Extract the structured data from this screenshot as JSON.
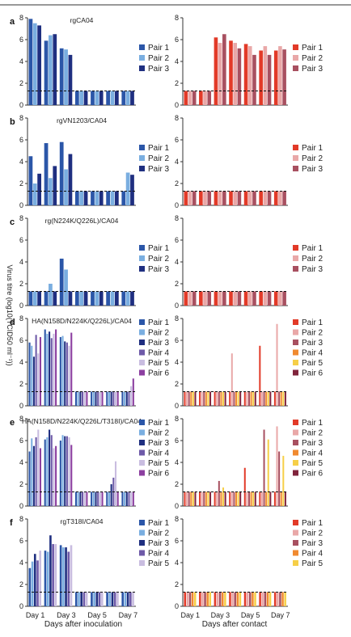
{
  "chart_data": {
    "type": "bar",
    "y_axis_label": "Virus titre (log10(TCID50 ml⁻¹))",
    "bottom_x_labels": {
      "left": "Days after inoculation",
      "right": "Days after contact"
    },
    "x_tick_labels": [
      "Day 1",
      "Day 3",
      "Day 5",
      "Day 7"
    ],
    "days": [
      1,
      2,
      3,
      4,
      5,
      6,
      7
    ],
    "detection_limit": 1.3,
    "ylim": [
      0,
      8
    ],
    "y_ticks": [
      0,
      2,
      4,
      6,
      8
    ],
    "palettes": {
      "inoculated": [
        "#2b56a8",
        "#7aaee0",
        "#1f2f80",
        "#6e5aa8",
        "#c9bde0",
        "#8c3fa0"
      ],
      "contact": [
        "#e23a28",
        "#e9a8a8",
        "#a85060",
        "#f08a30",
        "#f6cf48",
        "#80243c"
      ]
    },
    "panels": [
      {
        "letter": "a",
        "title": "rgCA04",
        "inoculated": [
          {
            "name": "Pair 1",
            "values": [
              7.9,
              5.9,
              5.2,
              1.3,
              1.3,
              1.3,
              1.3
            ]
          },
          {
            "name": "Pair 2",
            "values": [
              7.5,
              6.4,
              5.1,
              1.3,
              1.3,
              1.3,
              1.3
            ]
          },
          {
            "name": "Pair 3",
            "values": [
              7.3,
              6.5,
              4.6,
              1.3,
              1.3,
              1.3,
              1.3
            ]
          }
        ],
        "contact": [
          {
            "name": "Pair 1",
            "values": [
              1.3,
              1.3,
              6.2,
              5.9,
              5.6,
              5.0,
              5.0
            ]
          },
          {
            "name": "Pair 2",
            "values": [
              1.3,
              1.3,
              5.7,
              5.7,
              5.4,
              5.4,
              5.4
            ]
          },
          {
            "name": "Pair 3",
            "values": [
              1.3,
              1.3,
              6.5,
              5.2,
              4.6,
              4.6,
              5.1
            ]
          }
        ]
      },
      {
        "letter": "b",
        "title": "rgVN1203/CA04",
        "inoculated": [
          {
            "name": "Pair 1",
            "values": [
              4.5,
              5.7,
              5.8,
              1.3,
              1.3,
              1.3,
              1.3
            ]
          },
          {
            "name": "Pair 2",
            "values": [
              2.0,
              2.5,
              3.3,
              1.3,
              1.3,
              1.3,
              3.0
            ]
          },
          {
            "name": "Pair 3",
            "values": [
              2.9,
              3.6,
              4.7,
              1.3,
              1.3,
              1.3,
              2.8
            ]
          }
        ],
        "contact": [
          {
            "name": "Pair 1",
            "values": [
              1.3,
              1.3,
              1.3,
              1.3,
              1.3,
              1.3,
              1.3
            ]
          },
          {
            "name": "Pair 2",
            "values": [
              1.3,
              1.3,
              1.3,
              1.3,
              1.3,
              1.3,
              1.3
            ]
          },
          {
            "name": "Pair 3",
            "values": [
              1.3,
              1.3,
              1.3,
              1.3,
              1.3,
              1.3,
              1.3
            ]
          }
        ]
      },
      {
        "letter": "c",
        "title": "rg(N224K/Q226L)/CA04",
        "inoculated": [
          {
            "name": "Pair 1",
            "values": [
              1.3,
              1.3,
              4.3,
              1.3,
              1.3,
              1.3,
              1.3
            ]
          },
          {
            "name": "Pair 2",
            "values": [
              1.3,
              2.0,
              3.3,
              1.3,
              1.3,
              1.3,
              1.3
            ]
          },
          {
            "name": "Pair 3",
            "values": [
              1.3,
              1.3,
              1.3,
              1.3,
              1.3,
              1.3,
              1.3
            ]
          }
        ],
        "contact": [
          {
            "name": "Pair 1",
            "values": [
              1.3,
              1.3,
              1.3,
              1.3,
              1.3,
              1.3,
              1.3
            ]
          },
          {
            "name": "Pair 2",
            "values": [
              1.3,
              1.3,
              1.3,
              1.3,
              1.3,
              1.3,
              1.3
            ]
          },
          {
            "name": "Pair 3",
            "values": [
              1.3,
              1.3,
              1.3,
              1.3,
              1.3,
              1.3,
              1.3
            ]
          }
        ]
      },
      {
        "letter": "d",
        "title": "HA(N158D/N224K/Q226L)/CA04",
        "inoculated": [
          {
            "name": "Pair 1",
            "values": [
              5.8,
              7.0,
              6.3,
              1.3,
              1.3,
              1.3,
              1.3
            ]
          },
          {
            "name": "Pair 2",
            "values": [
              5.5,
              6.6,
              6.4,
              1.3,
              1.3,
              1.3,
              1.3
            ]
          },
          {
            "name": "Pair 3",
            "values": [
              4.5,
              6.8,
              5.9,
              1.3,
              1.3,
              1.3,
              1.3
            ]
          },
          {
            "name": "Pair 4",
            "values": [
              6.5,
              6.2,
              5.8,
              1.3,
              1.3,
              1.3,
              1.3
            ]
          },
          {
            "name": "Pair 5",
            "values": [
              4.8,
              6.6,
              5.5,
              1.3,
              1.3,
              1.3,
              1.8
            ]
          },
          {
            "name": "Pair 6",
            "values": [
              6.3,
              7.0,
              6.7,
              1.3,
              1.3,
              1.3,
              2.5
            ]
          }
        ],
        "contact": [
          {
            "name": "Pair 1",
            "values": [
              1.3,
              1.3,
              1.3,
              1.3,
              1.3,
              5.5,
              1.3
            ]
          },
          {
            "name": "Pair 2",
            "values": [
              1.3,
              1.3,
              1.3,
              4.8,
              1.3,
              1.3,
              7.5
            ]
          },
          {
            "name": "Pair 3",
            "values": [
              1.3,
              1.3,
              1.3,
              1.3,
              1.3,
              1.3,
              1.3
            ]
          },
          {
            "name": "Pair 4",
            "values": [
              1.3,
              1.3,
              1.3,
              1.3,
              1.3,
              1.3,
              1.3
            ]
          },
          {
            "name": "Pair 5",
            "values": [
              1.3,
              1.3,
              1.3,
              1.3,
              1.3,
              1.3,
              1.3
            ]
          },
          {
            "name": "Pair 6",
            "values": [
              1.3,
              1.3,
              1.3,
              1.3,
              1.3,
              1.3,
              1.3
            ]
          }
        ]
      },
      {
        "letter": "e",
        "title": "HA(N158D/N224K/Q226L/T318I)/CA04",
        "inoculated": [
          {
            "name": "Pair 1",
            "values": [
              5.0,
              6.1,
              6.0,
              1.3,
              1.3,
              1.3,
              1.3
            ]
          },
          {
            "name": "Pair 2",
            "values": [
              6.2,
              6.3,
              6.5,
              1.3,
              1.3,
              1.3,
              1.3
            ]
          },
          {
            "name": "Pair 3",
            "values": [
              5.5,
              7.0,
              6.4,
              1.3,
              1.3,
              2.0,
              1.3
            ]
          },
          {
            "name": "Pair 4",
            "values": [
              6.3,
              6.5,
              6.4,
              1.3,
              1.3,
              2.6,
              1.3
            ]
          },
          {
            "name": "Pair 5",
            "values": [
              7.0,
              5.3,
              6.3,
              1.3,
              1.3,
              4.1,
              1.3
            ]
          },
          {
            "name": "Pair 6",
            "values": [
              5.3,
              5.5,
              5.6,
              1.3,
              1.3,
              1.3,
              1.3
            ]
          }
        ],
        "contact": [
          {
            "name": "Pair 1",
            "values": [
              1.3,
              1.3,
              1.3,
              1.3,
              3.5,
              1.3,
              1.3
            ]
          },
          {
            "name": "Pair 2",
            "values": [
              1.3,
              1.3,
              1.3,
              1.3,
              1.3,
              1.3,
              7.3
            ]
          },
          {
            "name": "Pair 3",
            "values": [
              1.3,
              1.3,
              2.3,
              1.3,
              1.3,
              7.0,
              5.0
            ]
          },
          {
            "name": "Pair 4",
            "values": [
              1.3,
              1.3,
              1.3,
              1.3,
              1.3,
              1.3,
              1.3
            ]
          },
          {
            "name": "Pair 5",
            "values": [
              1.3,
              1.3,
              1.7,
              1.3,
              1.3,
              6.1,
              4.6
            ]
          },
          {
            "name": "Pair 6",
            "values": [
              1.3,
              1.3,
              1.3,
              1.3,
              1.3,
              1.3,
              1.3
            ]
          }
        ]
      },
      {
        "letter": "f",
        "title": "rgT318I/CA04",
        "inoculated": [
          {
            "name": "Pair 1",
            "values": [
              3.5,
              5.1,
              5.6,
              1.3,
              1.3,
              1.3,
              1.3
            ]
          },
          {
            "name": "Pair 2",
            "values": [
              4.1,
              5.0,
              5.4,
              1.3,
              1.3,
              1.3,
              1.3
            ]
          },
          {
            "name": "Pair 3",
            "values": [
              4.8,
              6.5,
              5.4,
              1.3,
              1.3,
              1.3,
              1.3
            ]
          },
          {
            "name": "Pair 4",
            "values": [
              4.2,
              5.7,
              5.0,
              1.3,
              1.3,
              1.3,
              1.3
            ]
          },
          {
            "name": "Pair 5",
            "values": [
              5.1,
              5.7,
              5.6,
              1.3,
              1.3,
              1.3,
              1.3
            ]
          }
        ],
        "contact": [
          {
            "name": "Pair 1",
            "values": [
              1.3,
              1.3,
              1.3,
              1.3,
              1.3,
              1.3,
              1.3
            ]
          },
          {
            "name": "Pair 2",
            "values": [
              1.3,
              1.3,
              1.3,
              1.3,
              1.3,
              1.3,
              1.3
            ]
          },
          {
            "name": "Pair 3",
            "values": [
              1.3,
              1.3,
              1.3,
              1.3,
              1.3,
              1.3,
              1.3
            ]
          },
          {
            "name": "Pair 4",
            "values": [
              1.3,
              1.3,
              1.3,
              1.3,
              1.3,
              1.3,
              1.3
            ]
          },
          {
            "name": "Pair 5",
            "values": [
              1.3,
              1.3,
              1.3,
              1.3,
              1.3,
              1.3,
              1.3
            ]
          }
        ]
      }
    ]
  }
}
